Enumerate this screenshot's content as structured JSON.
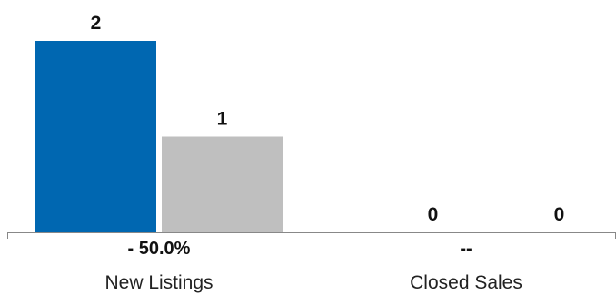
{
  "chart_data": {
    "type": "bar",
    "categories": [
      "New Listings",
      "Closed Sales"
    ],
    "change_labels": [
      "- 50.0%",
      "--"
    ],
    "series": [
      {
        "values": [
          2,
          0
        ],
        "color": "#0067b1"
      },
      {
        "values": [
          1,
          0
        ],
        "color": "#bfbfbf"
      }
    ],
    "ylim": [
      0,
      2
    ],
    "grid": false,
    "legend": "none",
    "axis_color": "#888888"
  }
}
